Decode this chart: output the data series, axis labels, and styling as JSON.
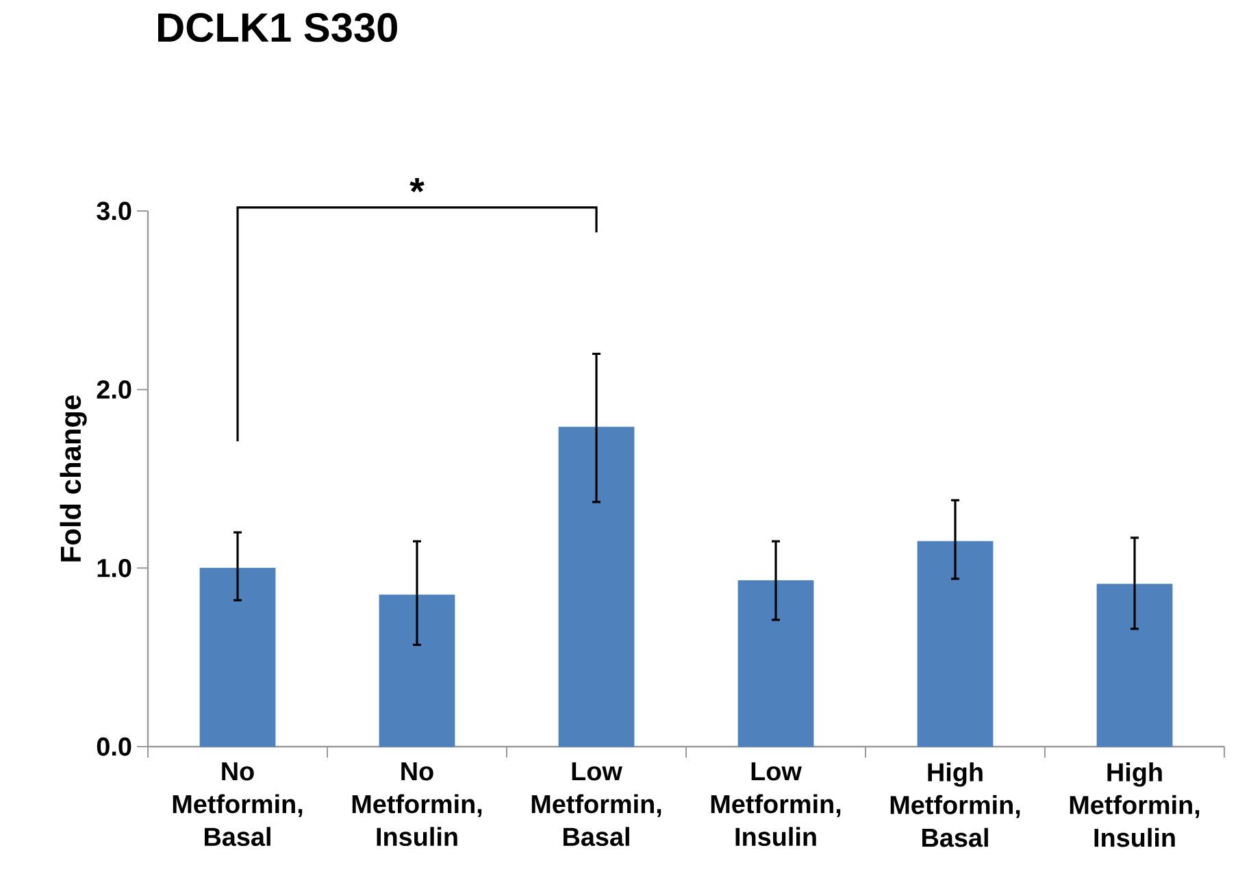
{
  "chart_data": {
    "type": "bar",
    "title": "DCLK1 S330",
    "ylabel": "Fold change",
    "categories": [
      "No Metformin, Basal",
      "No Metformin, Insulin",
      "Low Metformin, Basal",
      "Low Metformin, Insulin",
      "High Metformin, Basal",
      "High Metformin, Insulin"
    ],
    "values": [
      1.0,
      0.85,
      1.79,
      0.93,
      1.15,
      0.91
    ],
    "errors": [
      [
        0.82,
        1.2
      ],
      [
        0.57,
        1.15
      ],
      [
        1.37,
        2.2
      ],
      [
        0.71,
        1.15
      ],
      [
        0.94,
        1.38
      ],
      [
        0.66,
        1.17
      ]
    ],
    "color": "#4f81bd",
    "ylim": [
      0,
      3.0
    ],
    "yticks": [
      {
        "value": 0,
        "label": "0.0"
      },
      {
        "value": 1,
        "label": "1.0"
      },
      {
        "value": 2,
        "label": "2.0"
      },
      {
        "value": 3,
        "label": "3.0"
      }
    ],
    "annotations": [
      "*"
    ],
    "grid": false
  }
}
